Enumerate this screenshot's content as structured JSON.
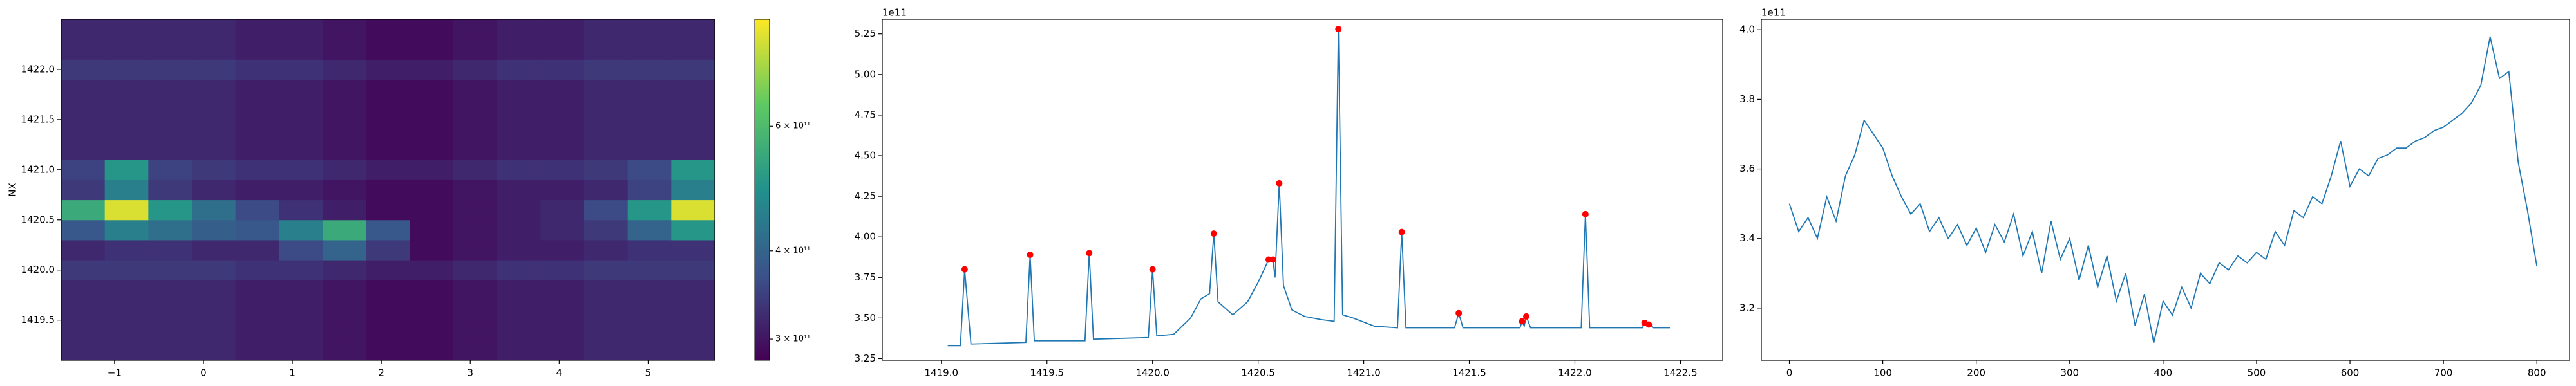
{
  "chart_data": [
    {
      "type": "heatmap",
      "ylabel": "NX",
      "xlim": [
        -1.6,
        5.75
      ],
      "ylim": [
        1419.1,
        1422.5
      ],
      "xticks": [
        {
          "value": -1,
          "label": "−1"
        },
        0,
        1,
        2,
        3,
        4,
        5
      ],
      "yticks": [
        1419.5,
        {
          "value": 1420,
          "label": "1420.0"
        },
        1420.5,
        {
          "value": 1421,
          "label": "1421.0"
        },
        1421.5,
        {
          "value": 1422,
          "label": "1422.0"
        }
      ],
      "xbins": [
        -1.6,
        -1.11,
        -0.62,
        -0.13,
        0.36,
        0.85,
        1.34,
        1.83,
        2.32,
        2.81,
        3.3,
        3.79,
        4.28,
        4.77,
        5.26,
        5.75
      ],
      "ybins": [
        1419.1,
        1419.3,
        1419.5,
        1419.7,
        1419.9,
        1420.1,
        1420.3,
        1420.5,
        1420.7,
        1420.9,
        1421.1,
        1421.3,
        1421.5,
        1421.7,
        1421.9,
        1422.1,
        1422.3,
        1422.5
      ],
      "z": [
        [
          320000000000.0,
          320000000000.0,
          320000000000.0,
          320000000000.0,
          310000000000.0,
          310000000000.0,
          300000000000.0,
          290000000000.0,
          290000000000.0,
          300000000000.0,
          310000000000.0,
          310000000000.0,
          320000000000.0,
          320000000000.0,
          320000000000.0
        ],
        [
          320000000000.0,
          320000000000.0,
          320000000000.0,
          320000000000.0,
          310000000000.0,
          310000000000.0,
          300000000000.0,
          290000000000.0,
          290000000000.0,
          300000000000.0,
          310000000000.0,
          310000000000.0,
          320000000000.0,
          320000000000.0,
          320000000000.0
        ],
        [
          320000000000.0,
          320000000000.0,
          320000000000.0,
          320000000000.0,
          310000000000.0,
          310000000000.0,
          300000000000.0,
          290000000000.0,
          290000000000.0,
          300000000000.0,
          310000000000.0,
          310000000000.0,
          320000000000.0,
          320000000000.0,
          320000000000.0
        ],
        [
          320000000000.0,
          320000000000.0,
          320000000000.0,
          320000000000.0,
          310000000000.0,
          310000000000.0,
          300000000000.0,
          290000000000.0,
          290000000000.0,
          300000000000.0,
          310000000000.0,
          310000000000.0,
          320000000000.0,
          320000000000.0,
          320000000000.0
        ],
        [
          340000000000.0,
          340000000000.0,
          340000000000.0,
          340000000000.0,
          330000000000.0,
          330000000000.0,
          320000000000.0,
          310000000000.0,
          310000000000.0,
          320000000000.0,
          330000000000.0,
          330000000000.0,
          340000000000.0,
          340000000000.0,
          340000000000.0
        ],
        [
          320000000000.0,
          330000000000.0,
          330000000000.0,
          320000000000.0,
          320000000000.0,
          360000000000.0,
          400000000000.0,
          340000000000.0,
          290000000000.0,
          300000000000.0,
          310000000000.0,
          310000000000.0,
          320000000000.0,
          330000000000.0,
          330000000000.0
        ],
        [
          380000000000.0,
          450000000000.0,
          420000000000.0,
          390000000000.0,
          380000000000.0,
          450000000000.0,
          550000000000.0,
          380000000000.0,
          290000000000.0,
          300000000000.0,
          310000000000.0,
          320000000000.0,
          340000000000.0,
          400000000000.0,
          500000000000.0
        ],
        [
          550000000000.0,
          800000000000.0,
          500000000000.0,
          420000000000.0,
          360000000000.0,
          330000000000.0,
          310000000000.0,
          290000000000.0,
          290000000000.0,
          300000000000.0,
          310000000000.0,
          320000000000.0,
          360000000000.0,
          500000000000.0,
          800000000000.0
        ],
        [
          340000000000.0,
          450000000000.0,
          340000000000.0,
          320000000000.0,
          310000000000.0,
          310000000000.0,
          300000000000.0,
          290000000000.0,
          290000000000.0,
          300000000000.0,
          310000000000.0,
          310000000000.0,
          320000000000.0,
          350000000000.0,
          450000000000.0
        ],
        [
          350000000000.0,
          500000000000.0,
          350000000000.0,
          340000000000.0,
          330000000000.0,
          330000000000.0,
          320000000000.0,
          310000000000.0,
          310000000000.0,
          320000000000.0,
          330000000000.0,
          330000000000.0,
          340000000000.0,
          360000000000.0,
          500000000000.0
        ],
        [
          320000000000.0,
          320000000000.0,
          320000000000.0,
          320000000000.0,
          310000000000.0,
          310000000000.0,
          300000000000.0,
          290000000000.0,
          290000000000.0,
          300000000000.0,
          310000000000.0,
          310000000000.0,
          320000000000.0,
          320000000000.0,
          320000000000.0
        ],
        [
          320000000000.0,
          320000000000.0,
          320000000000.0,
          320000000000.0,
          310000000000.0,
          310000000000.0,
          300000000000.0,
          290000000000.0,
          290000000000.0,
          300000000000.0,
          310000000000.0,
          310000000000.0,
          320000000000.0,
          320000000000.0,
          320000000000.0
        ],
        [
          320000000000.0,
          320000000000.0,
          320000000000.0,
          320000000000.0,
          310000000000.0,
          310000000000.0,
          300000000000.0,
          290000000000.0,
          290000000000.0,
          300000000000.0,
          310000000000.0,
          310000000000.0,
          320000000000.0,
          320000000000.0,
          320000000000.0
        ],
        [
          320000000000.0,
          320000000000.0,
          320000000000.0,
          320000000000.0,
          310000000000.0,
          310000000000.0,
          300000000000.0,
          290000000000.0,
          290000000000.0,
          300000000000.0,
          310000000000.0,
          310000000000.0,
          320000000000.0,
          320000000000.0,
          320000000000.0
        ],
        [
          340000000000.0,
          340000000000.0,
          340000000000.0,
          340000000000.0,
          330000000000.0,
          330000000000.0,
          320000000000.0,
          310000000000.0,
          310000000000.0,
          320000000000.0,
          330000000000.0,
          330000000000.0,
          340000000000.0,
          340000000000.0,
          340000000000.0
        ],
        [
          320000000000.0,
          320000000000.0,
          320000000000.0,
          320000000000.0,
          310000000000.0,
          310000000000.0,
          300000000000.0,
          290000000000.0,
          290000000000.0,
          300000000000.0,
          310000000000.0,
          310000000000.0,
          320000000000.0,
          320000000000.0,
          320000000000.0
        ],
        [
          320000000000.0,
          320000000000.0,
          320000000000.0,
          320000000000.0,
          310000000000.0,
          310000000000.0,
          300000000000.0,
          290000000000.0,
          290000000000.0,
          300000000000.0,
          310000000000.0,
          310000000000.0,
          320000000000.0,
          320000000000.0,
          320000000000.0
        ]
      ],
      "colormap": "viridis",
      "colorbar": {
        "scale": "log",
        "lim": [
          280000000000.0,
          850000000000.0
        ],
        "ticks": [
          {
            "value": 300000000000.0,
            "label": "3 × 10¹¹"
          },
          {
            "value": 400000000000.0,
            "label": "4 × 10¹¹"
          },
          {
            "value": 600000000000.0,
            "label": "6 × 10¹¹"
          }
        ]
      }
    },
    {
      "type": "line",
      "offset_label": "1e11",
      "xlim": [
        1418.72,
        1422.7
      ],
      "ylim": [
        3.24,
        5.34
      ],
      "xticks": [
        {
          "value": 1419,
          "label": "1419.0"
        },
        1419.5,
        {
          "value": 1420,
          "label": "1420.0"
        },
        1420.5,
        {
          "value": 1421,
          "label": "1421.0"
        },
        1421.5,
        {
          "value": 1422,
          "label": "1422.0"
        },
        1422.5
      ],
      "yticks": [
        3.25,
        {
          "value": 3.5,
          "label": "3.50"
        },
        3.75,
        {
          "value": 4,
          "label": "4.00"
        },
        4.25,
        {
          "value": 4.5,
          "label": "4.50"
        },
        4.75,
        {
          "value": 5,
          "label": "5.00"
        },
        5.25
      ],
      "series": [
        {
          "type": "line",
          "color": "#1f77b4",
          "x": [
            1419.03,
            1419.09,
            1419.11,
            1419.14,
            1419.4,
            1419.42,
            1419.44,
            1419.68,
            1419.7,
            1419.72,
            1419.98,
            1420.0,
            1420.02,
            1420.1,
            1420.18,
            1420.23,
            1420.27,
            1420.29,
            1420.31,
            1420.38,
            1420.45,
            1420.5,
            1420.55,
            1420.57,
            1420.58,
            1420.6,
            1420.62,
            1420.66,
            1420.72,
            1420.8,
            1420.86,
            1420.88,
            1420.9,
            1420.95,
            1421.05,
            1421.16,
            1421.18,
            1421.2,
            1421.43,
            1421.45,
            1421.47,
            1421.74,
            1421.75,
            1421.76,
            1421.77,
            1421.79,
            1422.03,
            1422.05,
            1422.07,
            1422.32,
            1422.33,
            1422.35,
            1422.37,
            1422.45
          ],
          "values": [
            3.33,
            3.33,
            3.8,
            3.34,
            3.35,
            3.89,
            3.36,
            3.36,
            3.9,
            3.37,
            3.38,
            3.8,
            3.39,
            3.4,
            3.5,
            3.62,
            3.65,
            4.02,
            3.6,
            3.52,
            3.6,
            3.72,
            3.86,
            3.86,
            3.75,
            4.33,
            3.7,
            3.55,
            3.51,
            3.49,
            3.48,
            5.28,
            3.52,
            3.5,
            3.45,
            3.44,
            4.03,
            3.44,
            3.44,
            3.53,
            3.44,
            3.44,
            3.48,
            3.45,
            3.51,
            3.44,
            3.44,
            4.14,
            3.44,
            3.44,
            3.47,
            3.46,
            3.44,
            3.44
          ]
        },
        {
          "type": "scatter",
          "color": "#ff0000",
          "x": [
            1419.11,
            1419.42,
            1419.7,
            1420.0,
            1420.29,
            1420.55,
            1420.57,
            1420.6,
            1420.88,
            1421.18,
            1421.45,
            1421.75,
            1421.77,
            1422.05,
            1422.33,
            1422.35
          ],
          "values": [
            3.8,
            3.89,
            3.9,
            3.8,
            4.02,
            3.86,
            3.86,
            4.33,
            5.28,
            4.03,
            3.53,
            3.48,
            3.51,
            4.14,
            3.47,
            3.46
          ]
        }
      ]
    },
    {
      "type": "line",
      "offset_label": "1e11",
      "xlim": [
        -30,
        835
      ],
      "ylim": [
        3.05,
        4.03
      ],
      "xticks": [
        0,
        100,
        200,
        300,
        400,
        500,
        600,
        700,
        800
      ],
      "yticks": [
        3.2,
        3.4,
        3.6,
        3.8,
        {
          "value": 4,
          "label": "4.0"
        }
      ],
      "series": [
        {
          "type": "line",
          "color": "#1f77b4",
          "x": [
            0,
            10,
            20,
            30,
            40,
            50,
            60,
            70,
            80,
            90,
            100,
            110,
            120,
            130,
            140,
            150,
            160,
            170,
            180,
            190,
            200,
            210,
            220,
            230,
            240,
            250,
            260,
            270,
            280,
            290,
            300,
            310,
            320,
            330,
            340,
            350,
            360,
            370,
            380,
            390,
            400,
            410,
            420,
            430,
            440,
            450,
            460,
            470,
            480,
            490,
            500,
            510,
            520,
            530,
            540,
            550,
            560,
            570,
            580,
            590,
            600,
            610,
            620,
            630,
            640,
            650,
            660,
            670,
            680,
            690,
            700,
            710,
            720,
            730,
            740,
            750,
            760,
            770,
            780,
            790,
            800
          ],
          "values": [
            3.5,
            3.42,
            3.46,
            3.4,
            3.52,
            3.45,
            3.58,
            3.64,
            3.74,
            3.7,
            3.66,
            3.58,
            3.52,
            3.47,
            3.5,
            3.42,
            3.46,
            3.4,
            3.44,
            3.38,
            3.43,
            3.36,
            3.44,
            3.39,
            3.47,
            3.35,
            3.42,
            3.3,
            3.45,
            3.34,
            3.4,
            3.28,
            3.38,
            3.26,
            3.35,
            3.22,
            3.3,
            3.15,
            3.24,
            3.1,
            3.22,
            3.18,
            3.26,
            3.2,
            3.3,
            3.27,
            3.33,
            3.31,
            3.35,
            3.33,
            3.36,
            3.34,
            3.42,
            3.38,
            3.48,
            3.46,
            3.52,
            3.5,
            3.58,
            3.68,
            3.55,
            3.6,
            3.58,
            3.63,
            3.64,
            3.66,
            3.66,
            3.68,
            3.69,
            3.71,
            3.72,
            3.74,
            3.76,
            3.79,
            3.84,
            3.98,
            3.86,
            3.88,
            3.62,
            3.48,
            3.32
          ]
        }
      ]
    }
  ]
}
